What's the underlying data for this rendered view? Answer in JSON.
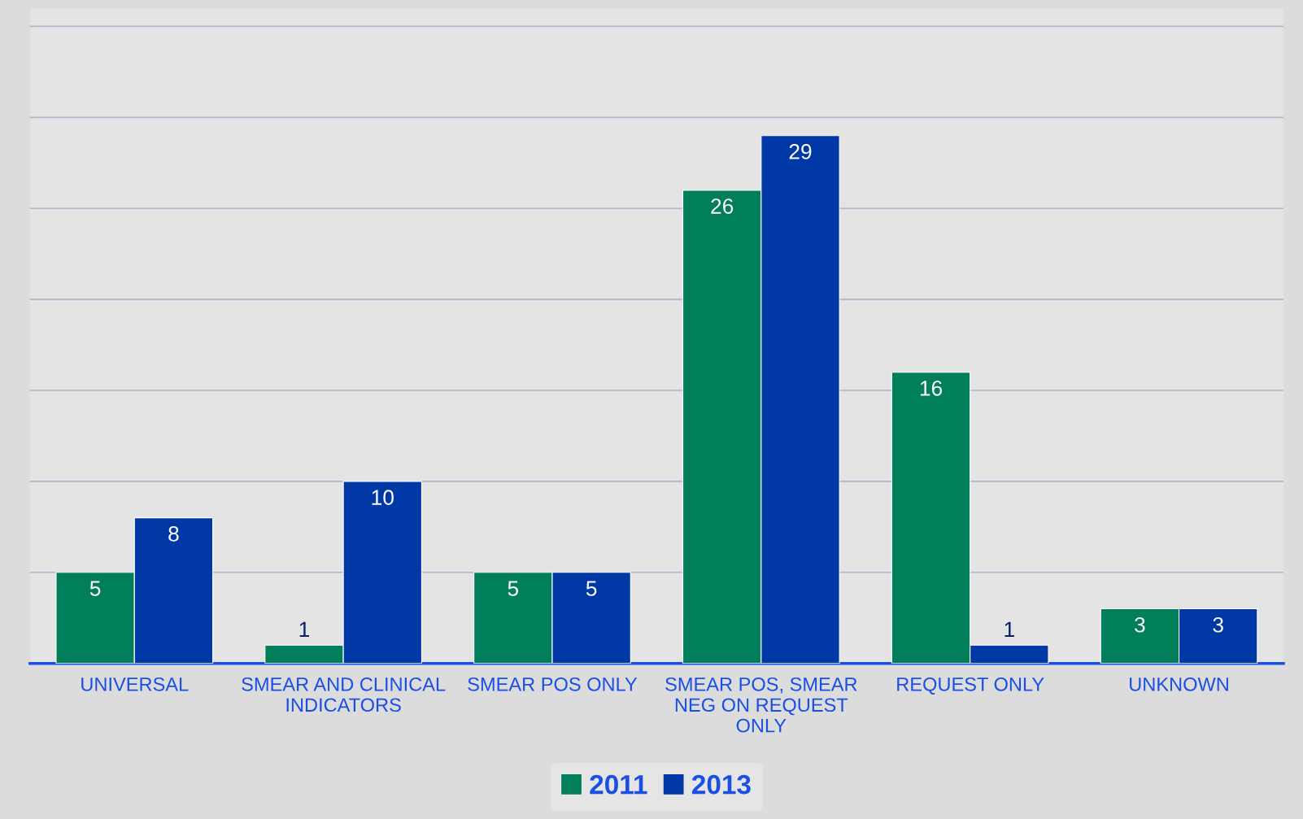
{
  "chart_data": {
    "type": "bar",
    "categories": [
      "UNIVERSAL",
      "SMEAR AND CLINICAL\nINDICATORS",
      "SMEAR POS ONLY",
      "SMEAR POS, SMEAR\nNEG ON REQUEST\nONLY",
      "REQUEST ONLY",
      "UNKNOWN"
    ],
    "series": [
      {
        "name": "2011",
        "color": "#007f5a",
        "values": [
          5,
          1,
          5,
          26,
          16,
          3
        ]
      },
      {
        "name": "2013",
        "color": "#0039a6",
        "values": [
          8,
          10,
          5,
          29,
          1,
          3
        ]
      }
    ],
    "ylim": [
      0,
      36
    ],
    "yticks": [
      {
        "value": 0,
        "label": null
      },
      {
        "value": 5,
        "label": null
      },
      {
        "value": 10,
        "label": null
      },
      {
        "value": 15,
        "label": null
      },
      {
        "value": 20,
        "label": null
      },
      {
        "value": 25,
        "label": null
      },
      {
        "value": 30,
        "label": null
      },
      {
        "value": 35,
        "label": null
      }
    ],
    "tick_labels": "x",
    "grid": "y",
    "legend": "bottom",
    "data_labels": true
  }
}
